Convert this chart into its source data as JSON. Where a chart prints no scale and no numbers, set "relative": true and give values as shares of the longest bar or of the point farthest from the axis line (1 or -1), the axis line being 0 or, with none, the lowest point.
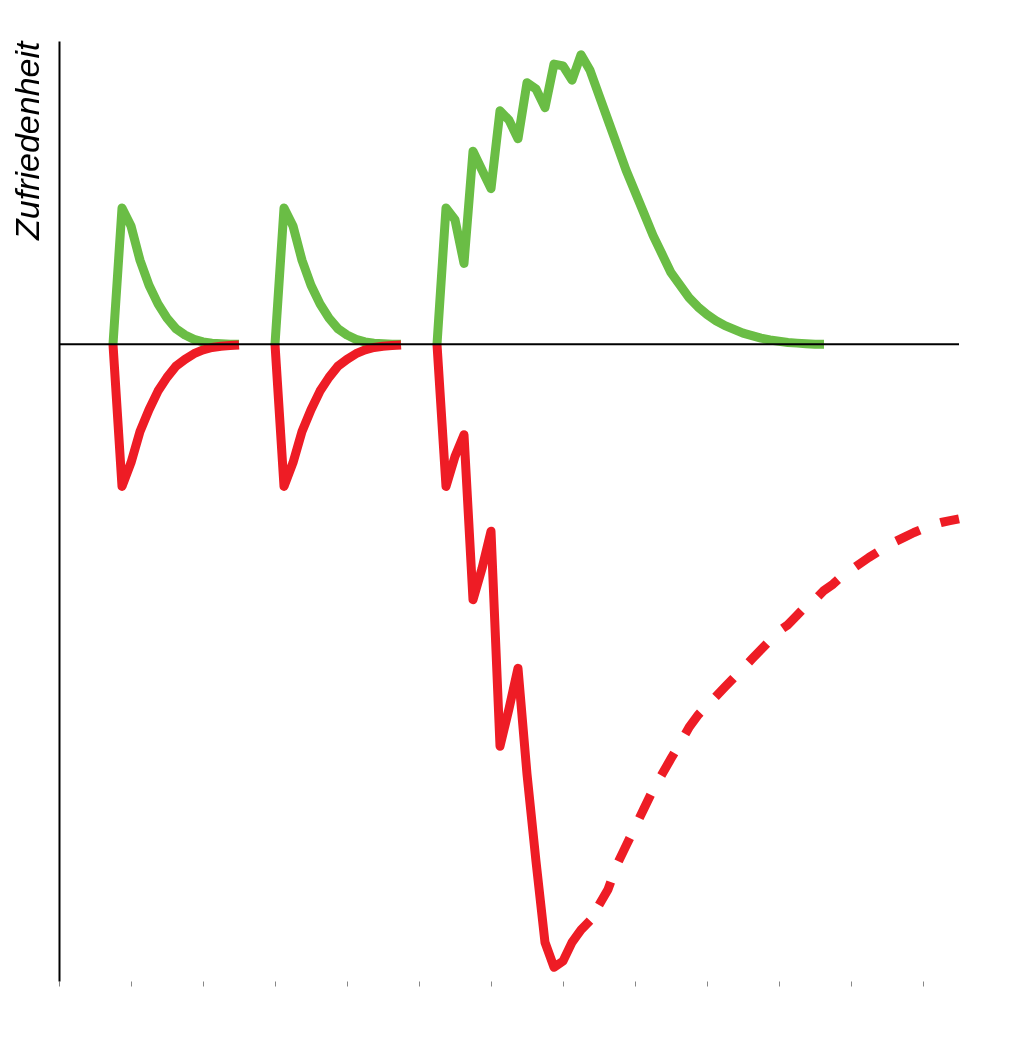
{
  "chart_data": {
    "type": "line",
    "ylabel": "Zufriedenheit",
    "relative": true,
    "categories": [
      null,
      null,
      null,
      null,
      null,
      null,
      null,
      null,
      null,
      null,
      null,
      null,
      null,
      null,
      null,
      null,
      null,
      null,
      null,
      null,
      null,
      null,
      null,
      null,
      null,
      null,
      null,
      null,
      null,
      null,
      null,
      null,
      null,
      null,
      null,
      null,
      null,
      null,
      null,
      null,
      null,
      null,
      null,
      null,
      null,
      null,
      null,
      null,
      null,
      null,
      null,
      null,
      null,
      null,
      null,
      null,
      null,
      null,
      null,
      null,
      null,
      null,
      null,
      null,
      null,
      null,
      null,
      null,
      null,
      null,
      null,
      null,
      null,
      null,
      null,
      null,
      null,
      null,
      null,
      null,
      null,
      null,
      null,
      null,
      null,
      null,
      null,
      null,
      null,
      null,
      null,
      null,
      null,
      null,
      null,
      null,
      null,
      null,
      null,
      null,
      null
    ],
    "series": [
      {
        "color": "#6abd45",
        "line_style": "solid",
        "values": [
          null,
          null,
          null,
          null,
          null,
          null,
          0,
          0.219,
          0.19,
          0.135,
          0.095,
          0.065,
          0.042,
          0.025,
          0.015,
          0.008,
          0.004,
          0.002,
          0.001,
          0,
          0,
          null,
          null,
          null,
          null,
          null,
          null,
          null,
          null,
          null,
          null,
          null,
          null,
          null,
          null,
          null,
          null,
          null,
          null,
          null,
          null,
          null,
          null,
          null,
          null,
          null,
          null,
          null,
          null,
          null,
          null,
          null,
          null,
          null,
          null,
          null,
          null,
          null,
          null,
          null,
          null,
          null,
          null,
          null,
          null,
          null,
          null,
          null,
          null,
          null,
          null,
          null,
          null,
          null,
          null,
          null,
          null,
          null,
          null,
          null,
          null,
          null,
          null,
          null,
          null,
          null,
          null,
          null,
          null,
          null,
          null,
          null,
          null,
          null,
          null,
          null,
          null,
          null,
          null,
          null,
          null
        ]
      },
      {
        "color": "#ee1c25",
        "line_style": "solid",
        "values": [
          null,
          null,
          null,
          null,
          null,
          null,
          0,
          -0.228,
          -0.19,
          -0.14,
          -0.105,
          -0.075,
          -0.053,
          -0.035,
          -0.024,
          -0.015,
          -0.009,
          -0.005,
          -0.003,
          -0.002,
          -0.001,
          null,
          null,
          null,
          null,
          null,
          null,
          null,
          null,
          null,
          null,
          null,
          null,
          null,
          null,
          null,
          null,
          null,
          null,
          null,
          null,
          null,
          null,
          null,
          null,
          null,
          null,
          null,
          null,
          null,
          null,
          null,
          null,
          null,
          null,
          null,
          null,
          null,
          null,
          null,
          null,
          null,
          null,
          null,
          null,
          null,
          null,
          null,
          null,
          null,
          null,
          null,
          null,
          null,
          null,
          null,
          null,
          null,
          null,
          null,
          null,
          null,
          null,
          null,
          null,
          null,
          null,
          null,
          null,
          null,
          null,
          null,
          null,
          null,
          null,
          null,
          null,
          null,
          null,
          null,
          null
        ]
      },
      {
        "color": "#6abd45",
        "line_style": "solid",
        "values": [
          null,
          null,
          null,
          null,
          null,
          null,
          null,
          null,
          null,
          null,
          null,
          null,
          null,
          null,
          null,
          null,
          null,
          null,
          null,
          null,
          null,
          null,
          null,
          null,
          0,
          0.219,
          0.19,
          0.135,
          0.095,
          0.065,
          0.042,
          0.025,
          0.015,
          0.008,
          0.004,
          0.002,
          0.001,
          0,
          0,
          null,
          null,
          null,
          null,
          null,
          null,
          null,
          null,
          null,
          null,
          null,
          null,
          null,
          null,
          null,
          null,
          null,
          null,
          null,
          null,
          null,
          null,
          null,
          null,
          null,
          null,
          null,
          null,
          null,
          null,
          null,
          null,
          null,
          null,
          null,
          null,
          null,
          null,
          null,
          null,
          null,
          null,
          null,
          null,
          null,
          null,
          null,
          null,
          null,
          null,
          null,
          null,
          null,
          null,
          null,
          null,
          null,
          null,
          null,
          null,
          null,
          null
        ]
      },
      {
        "color": "#ee1c25",
        "line_style": "solid",
        "values": [
          null,
          null,
          null,
          null,
          null,
          null,
          null,
          null,
          null,
          null,
          null,
          null,
          null,
          null,
          null,
          null,
          null,
          null,
          null,
          null,
          null,
          null,
          null,
          null,
          0,
          -0.228,
          -0.19,
          -0.14,
          -0.105,
          -0.075,
          -0.053,
          -0.035,
          -0.024,
          -0.015,
          -0.009,
          -0.005,
          -0.003,
          -0.002,
          -0.001,
          null,
          null,
          null,
          null,
          null,
          null,
          null,
          null,
          null,
          null,
          null,
          null,
          null,
          null,
          null,
          null,
          null,
          null,
          null,
          null,
          null,
          null,
          null,
          null,
          null,
          null,
          null,
          null,
          null,
          null,
          null,
          null,
          null,
          null,
          null,
          null,
          null,
          null,
          null,
          null,
          null,
          null,
          null,
          null,
          null,
          null,
          null,
          null,
          null,
          null,
          null,
          null,
          null,
          null,
          null,
          null,
          null,
          null,
          null,
          null,
          null,
          null
        ]
      },
      {
        "color": "#6abd45",
        "line_style": "solid",
        "values": [
          null,
          null,
          null,
          null,
          null,
          null,
          null,
          null,
          null,
          null,
          null,
          null,
          null,
          null,
          null,
          null,
          null,
          null,
          null,
          null,
          null,
          null,
          null,
          null,
          null,
          null,
          null,
          null,
          null,
          null,
          null,
          null,
          null,
          null,
          null,
          null,
          null,
          null,
          null,
          null,
          null,
          null,
          0,
          0.219,
          0.2,
          0.13,
          0.31,
          0.28,
          0.25,
          0.375,
          0.36,
          0.33,
          0.42,
          0.41,
          0.38,
          0.45,
          0.447,
          0.424,
          0.465,
          0.44,
          0.4,
          0.36,
          0.32,
          0.28,
          0.245,
          0.21,
          0.175,
          0.145,
          0.115,
          0.095,
          0.075,
          0.06,
          0.048,
          0.038,
          0.03,
          0.024,
          0.018,
          0.014,
          0.01,
          0.007,
          0.005,
          0.003,
          0.002,
          0.001,
          0,
          0,
          null,
          null,
          null,
          null,
          null,
          null,
          null,
          null,
          null,
          null,
          null,
          null,
          null,
          null,
          null
        ]
      },
      {
        "color": "#ee1c25",
        "line_style": "solid",
        "values": [
          null,
          null,
          null,
          null,
          null,
          null,
          null,
          null,
          null,
          null,
          null,
          null,
          null,
          null,
          null,
          null,
          null,
          null,
          null,
          null,
          null,
          null,
          null,
          null,
          null,
          null,
          null,
          null,
          null,
          null,
          null,
          null,
          null,
          null,
          null,
          null,
          null,
          null,
          null,
          null,
          null,
          null,
          0,
          -0.228,
          -0.18,
          -0.145,
          -0.41,
          -0.36,
          -0.3,
          -0.645,
          -0.585,
          -0.52,
          -0.69,
          -0.83,
          -0.96,
          -1,
          -0.99,
          -0.96,
          -0.94,
          -0.925,
          null,
          null,
          null,
          null,
          null,
          null,
          null,
          null,
          null,
          null,
          null,
          null,
          null,
          null,
          null,
          null,
          null,
          null,
          null,
          null,
          null,
          null,
          null,
          null,
          null,
          null,
          null,
          null,
          null,
          null,
          null,
          null,
          null,
          null,
          null,
          null,
          null,
          null,
          null,
          null,
          null
        ]
      },
      {
        "color": "#ee1c25",
        "line_style": "dashed",
        "values": [
          null,
          null,
          null,
          null,
          null,
          null,
          null,
          null,
          null,
          null,
          null,
          null,
          null,
          null,
          null,
          null,
          null,
          null,
          null,
          null,
          null,
          null,
          null,
          null,
          null,
          null,
          null,
          null,
          null,
          null,
          null,
          null,
          null,
          null,
          null,
          null,
          null,
          null,
          null,
          null,
          null,
          null,
          null,
          null,
          null,
          null,
          null,
          null,
          null,
          null,
          null,
          null,
          null,
          null,
          null,
          null,
          null,
          null,
          null,
          null,
          -0.9,
          -0.875,
          -0.835,
          -0.805,
          -0.775,
          -0.745,
          -0.715,
          -0.69,
          -0.665,
          -0.64,
          -0.615,
          -0.595,
          -0.58,
          -0.565,
          -0.55,
          -0.535,
          -0.52,
          -0.505,
          -0.49,
          -0.475,
          -0.46,
          -0.45,
          -0.435,
          -0.42,
          -0.41,
          -0.395,
          -0.385,
          -0.372,
          -0.362,
          -0.352,
          -0.342,
          -0.333,
          -0.324,
          -0.316,
          -0.309,
          -0.302,
          -0.296,
          -0.29,
          -0.286,
          -0.283,
          -0.28
        ]
      }
    ]
  }
}
